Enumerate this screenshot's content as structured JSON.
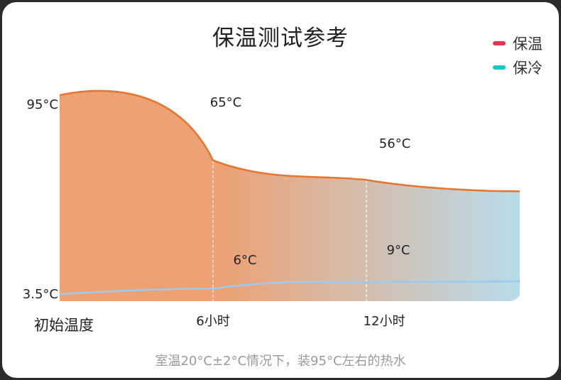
{
  "chart_data": {
    "type": "area",
    "title": "保温测试参考",
    "x_categories": [
      "初始温度",
      "6小时",
      "12小时"
    ],
    "x_hours": [
      0,
      6,
      12,
      18
    ],
    "series": [
      {
        "name": "保温",
        "color": "#e8732f",
        "points": [
          95,
          65,
          56,
          null
        ],
        "labels": [
          "95°C",
          "65°C",
          "56°C"
        ]
      },
      {
        "name": "保冷",
        "color": "#9ccbf0",
        "points": [
          3.5,
          6,
          9,
          null
        ],
        "labels": [
          "3.5°C",
          "6°C",
          "9°C"
        ]
      }
    ],
    "fill_gradient": [
      "#eda175",
      "#b7dcea"
    ],
    "note": "室温20°C±2°C情况下，装95°C左右的热水"
  },
  "legend": [
    {
      "label": "保温",
      "color": "#e0364f"
    },
    {
      "label": "保冷",
      "color": "#18c7c9"
    }
  ]
}
